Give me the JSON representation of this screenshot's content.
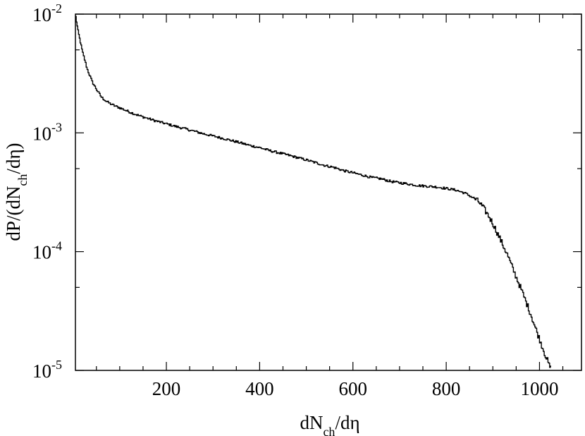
{
  "chart_data": {
    "type": "line",
    "style": "step",
    "xlabel": {
      "main": "dN",
      "sub": "ch",
      "tail": "/dη"
    },
    "ylabel": {
      "main": "dP/(dN",
      "sub": "ch",
      "tail": "/dη)"
    },
    "xlim": [
      5,
      1090
    ],
    "ylim": [
      1e-05,
      0.01
    ],
    "yscale": "log",
    "grid": false,
    "x_ticks": [
      200,
      400,
      600,
      800,
      1000
    ],
    "x_tick_labels": [
      "200",
      "400",
      "600",
      "800",
      "1000"
    ],
    "y_ticks": [
      1e-05,
      0.0001,
      0.001,
      0.01
    ],
    "y_tick_labels": [
      {
        "base": "10",
        "exp": "-5"
      },
      {
        "base": "10",
        "exp": "-4"
      },
      {
        "base": "10",
        "exp": "-3"
      },
      {
        "base": "10",
        "exp": "-2"
      }
    ],
    "series": [
      {
        "color": "#000000",
        "x": [
          5,
          10,
          15,
          20,
          30,
          40,
          50,
          60,
          70,
          80,
          90,
          100,
          120,
          140,
          160,
          180,
          200,
          220,
          240,
          260,
          280,
          300,
          320,
          340,
          360,
          380,
          400,
          420,
          440,
          460,
          480,
          500,
          520,
          540,
          560,
          580,
          600,
          620,
          640,
          660,
          680,
          700,
          720,
          740,
          760,
          780,
          800,
          820,
          840,
          860,
          870,
          880,
          890,
          900,
          910,
          920,
          930,
          940,
          950,
          960,
          970,
          980,
          990,
          1000,
          1010,
          1020,
          1025
        ],
        "y": [
          0.0095,
          0.0072,
          0.0058,
          0.0047,
          0.0034,
          0.0027,
          0.0023,
          0.002,
          0.00185,
          0.00175,
          0.00168,
          0.00162,
          0.0015,
          0.0014,
          0.00132,
          0.00125,
          0.00119,
          0.00113,
          0.00108,
          0.00103,
          0.00098,
          0.00094,
          0.0009,
          0.00086,
          0.00082,
          0.00078,
          0.00075,
          0.00071,
          0.00068,
          0.00065,
          0.00062,
          0.00059,
          0.00056,
          0.00053,
          0.00051,
          0.00048,
          0.00046,
          0.00044,
          0.00042,
          0.00041,
          0.00039,
          0.00038,
          0.00037,
          0.00036,
          0.000355,
          0.00035,
          0.00034,
          0.00033,
          0.00031,
          0.00028,
          0.00026,
          0.00023,
          0.0002,
          0.00017,
          0.00014,
          0.000115,
          9.5e-05,
          7.5e-05,
          6e-05,
          4.8e-05,
          3.8e-05,
          3e-05,
          2.3e-05,
          1.8e-05,
          1.4e-05,
          1.1e-05,
          1.01e-05
        ]
      }
    ]
  }
}
